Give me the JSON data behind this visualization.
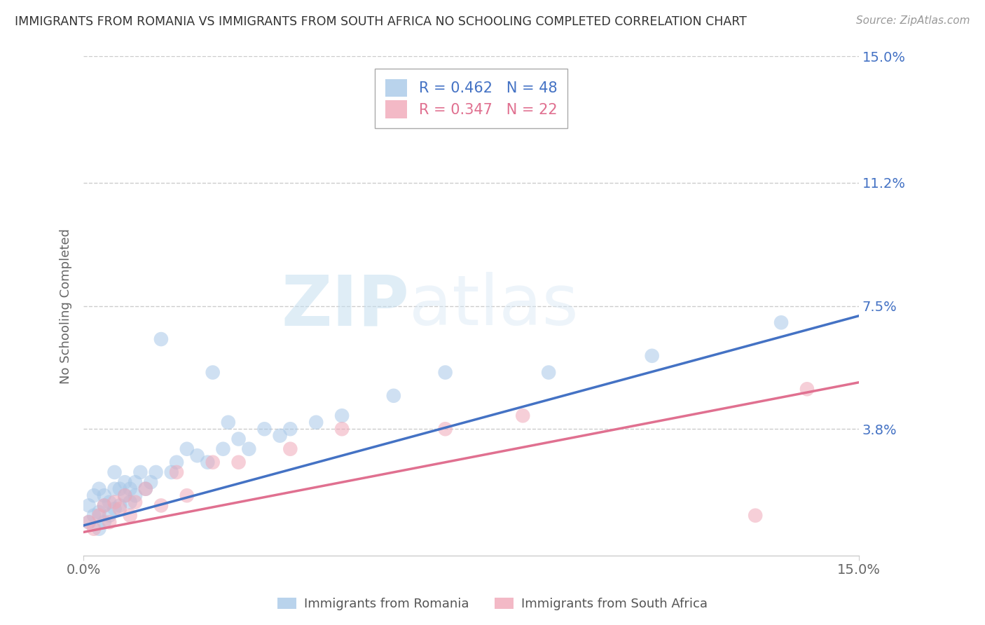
{
  "title": "IMMIGRANTS FROM ROMANIA VS IMMIGRANTS FROM SOUTH AFRICA NO SCHOOLING COMPLETED CORRELATION CHART",
  "source": "Source: ZipAtlas.com",
  "ylabel": "No Schooling Completed",
  "legend_label1": "Immigrants from Romania",
  "legend_label2": "Immigrants from South Africa",
  "R1": 0.462,
  "N1": 48,
  "R2": 0.347,
  "N2": 22,
  "xlim": [
    0.0,
    0.15
  ],
  "ylim": [
    0.0,
    0.15
  ],
  "ytick_values": [
    0.038,
    0.075,
    0.112,
    0.15
  ],
  "ytick_labels": [
    "3.8%",
    "7.5%",
    "11.2%",
    "15.0%"
  ],
  "xtick_values": [
    0.0,
    0.15
  ],
  "xtick_labels": [
    "0.0%",
    "15.0%"
  ],
  "color_romania": "#a8c8e8",
  "color_sa": "#f0a8b8",
  "line_color_romania": "#4472c4",
  "line_color_sa": "#e07090",
  "watermark_zip": "ZIP",
  "watermark_atlas": "atlas",
  "romania_x": [
    0.001,
    0.001,
    0.002,
    0.002,
    0.003,
    0.003,
    0.003,
    0.004,
    0.004,
    0.004,
    0.005,
    0.005,
    0.006,
    0.006,
    0.006,
    0.007,
    0.007,
    0.008,
    0.008,
    0.009,
    0.009,
    0.01,
    0.01,
    0.011,
    0.012,
    0.013,
    0.014,
    0.015,
    0.017,
    0.018,
    0.02,
    0.022,
    0.024,
    0.025,
    0.027,
    0.028,
    0.03,
    0.032,
    0.035,
    0.038,
    0.04,
    0.045,
    0.05,
    0.06,
    0.07,
    0.09,
    0.11,
    0.135
  ],
  "romania_y": [
    0.01,
    0.015,
    0.012,
    0.018,
    0.008,
    0.013,
    0.02,
    0.015,
    0.01,
    0.018,
    0.012,
    0.016,
    0.014,
    0.02,
    0.025,
    0.015,
    0.02,
    0.018,
    0.022,
    0.016,
    0.02,
    0.022,
    0.018,
    0.025,
    0.02,
    0.022,
    0.025,
    0.065,
    0.025,
    0.028,
    0.032,
    0.03,
    0.028,
    0.055,
    0.032,
    0.04,
    0.035,
    0.032,
    0.038,
    0.036,
    0.038,
    0.04,
    0.042,
    0.048,
    0.055,
    0.055,
    0.06,
    0.07
  ],
  "sa_x": [
    0.001,
    0.002,
    0.003,
    0.004,
    0.005,
    0.006,
    0.007,
    0.008,
    0.009,
    0.01,
    0.012,
    0.015,
    0.018,
    0.02,
    0.025,
    0.03,
    0.04,
    0.05,
    0.07,
    0.085,
    0.13,
    0.14
  ],
  "sa_y": [
    0.01,
    0.008,
    0.012,
    0.015,
    0.01,
    0.016,
    0.014,
    0.018,
    0.012,
    0.016,
    0.02,
    0.015,
    0.025,
    0.018,
    0.028,
    0.028,
    0.032,
    0.038,
    0.038,
    0.042,
    0.012,
    0.05
  ],
  "trendline_romania": [
    0.009,
    0.072
  ],
  "trendline_sa": [
    0.007,
    0.052
  ]
}
